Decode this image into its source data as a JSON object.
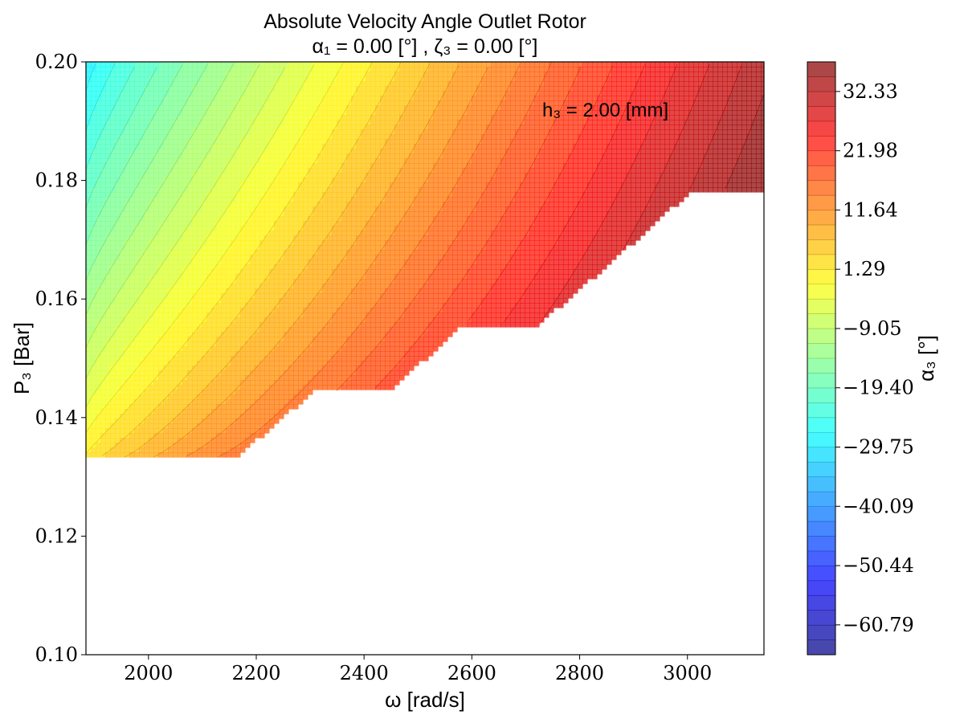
{
  "chart_data": {
    "type": "contour",
    "title": "Absolute Velocity Angle Outlet Rotor",
    "subtitle": "α₁ = 0.00 [°] , ζ₃ = 0.00 [°]",
    "xlabel": "ω [rad/s]",
    "ylabel": "P₃ [Bar]",
    "colorbar_label": "α₃ [°]",
    "annotation": "h₃ = 2.00 [mm]",
    "xlim": [
      1884,
      3142
    ],
    "ylim": [
      0.1,
      0.2
    ],
    "x_ticks": [
      "2000",
      "2200",
      "2400",
      "2600",
      "2800",
      "3000"
    ],
    "y_ticks": [
      "0.10",
      "0.12",
      "0.14",
      "0.16",
      "0.18",
      "0.20"
    ],
    "colorbar_ticks": [
      "32.33",
      "21.98",
      "11.64",
      "1.29",
      "−9.05",
      "−19.40",
      "−29.75",
      "−40.09",
      "−50.44",
      "−60.79"
    ],
    "colorbar_range": [
      -66.0,
      37.5
    ],
    "colormap": "jet",
    "feasible_region_lower_boundary": [
      {
        "x": 1884,
        "y": 0.1333
      },
      {
        "x": 2165,
        "y": 0.1333
      },
      {
        "x": 2305,
        "y": 0.1444
      },
      {
        "x": 2445,
        "y": 0.1444
      },
      {
        "x": 2584,
        "y": 0.1556
      },
      {
        "x": 2724,
        "y": 0.1556
      },
      {
        "x": 2864,
        "y": 0.1667
      },
      {
        "x": 3003,
        "y": 0.1778
      },
      {
        "x": 3142,
        "y": 0.1778
      }
    ],
    "value_samples": [
      {
        "x": 1884,
        "y": 0.2,
        "value": -29.0
      },
      {
        "x": 2400,
        "y": 0.2,
        "value": 0.0
      },
      {
        "x": 2900,
        "y": 0.2,
        "value": 25.0
      },
      {
        "x": 3142,
        "y": 0.2,
        "value": 33.0
      },
      {
        "x": 1884,
        "y": 0.1333,
        "value": 2.0
      },
      {
        "x": 2600,
        "y": 0.16,
        "value": 20.0
      }
    ]
  }
}
